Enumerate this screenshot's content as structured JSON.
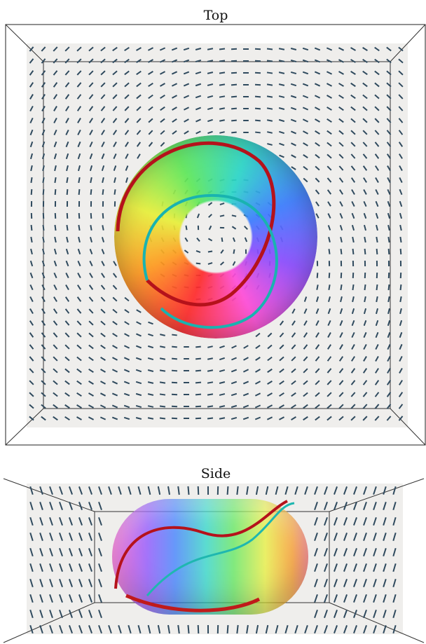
{
  "panels": [
    {
      "title": "Top"
    },
    {
      "title": "Side"
    }
  ]
}
